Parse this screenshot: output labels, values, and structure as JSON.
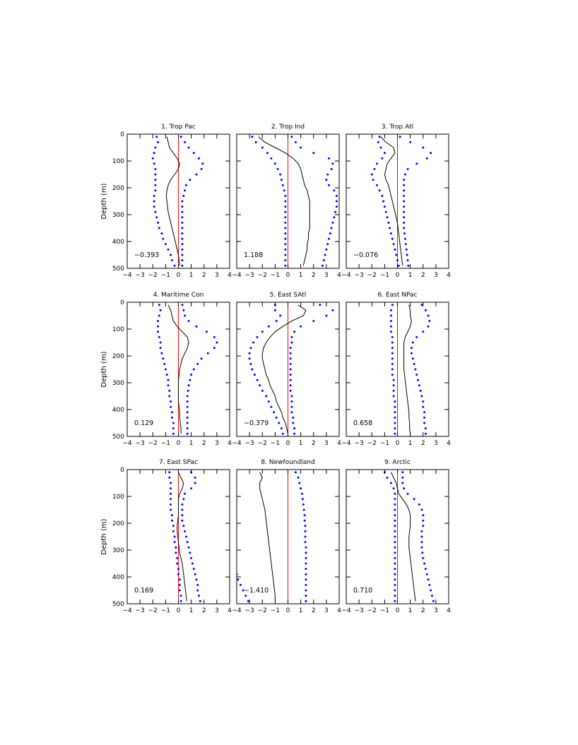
{
  "figure": {
    "ylabel": "Depth (m)"
  },
  "chart_data": {
    "type": "line",
    "shared": {
      "xlim": [
        -4,
        4
      ],
      "ylim": [
        500,
        0
      ],
      "xticks": [
        "−4",
        "−3",
        "−2",
        "−1",
        "0",
        "1",
        "2",
        "3",
        "4"
      ],
      "yticks": [
        "0",
        "100",
        "200",
        "300",
        "400",
        "500"
      ],
      "reference_line_x": 0,
      "colors": {
        "mean": "#000000",
        "bounds": "#0000ff",
        "zero_line": "#ff0000"
      }
    },
    "panels": [
      {
        "title": "1. Trop Pac",
        "value_label": "−0.393",
        "depths": [
          10,
          30,
          50,
          70,
          90,
          110,
          130,
          150,
          170,
          190,
          210,
          230,
          250,
          270,
          290,
          310,
          330,
          350,
          370,
          390,
          410,
          430,
          450,
          470,
          490
        ],
        "mean": [
          -0.9,
          -0.8,
          -0.7,
          -0.4,
          -0.1,
          0.1,
          0.0,
          -0.3,
          -0.6,
          -0.8,
          -0.9,
          -0.95,
          -0.9,
          -0.85,
          -0.8,
          -0.7,
          -0.6,
          -0.5,
          -0.4,
          -0.3,
          -0.2,
          -0.1,
          0.0,
          0.05,
          0.1
        ],
        "lower": [
          -1.7,
          -1.6,
          -1.8,
          -1.9,
          -2.0,
          -1.9,
          -1.8,
          -1.8,
          -1.8,
          -1.8,
          -1.8,
          -1.9,
          -1.9,
          -1.9,
          -1.8,
          -1.7,
          -1.6,
          -1.5,
          -1.3,
          -1.2,
          -1.0,
          -0.8,
          -0.6,
          -0.5,
          -0.3
        ],
        "upper": [
          0.2,
          0.5,
          0.8,
          1.2,
          1.6,
          1.9,
          1.8,
          1.4,
          0.9,
          0.6,
          0.5,
          0.4,
          0.3,
          0.3,
          0.3,
          0.3,
          0.3,
          0.3,
          0.3,
          0.3,
          0.3,
          0.3,
          0.3,
          0.3,
          0.3
        ]
      },
      {
        "title": "2. Trop Ind",
        "value_label": "1.188",
        "depths": [
          10,
          30,
          50,
          70,
          90,
          110,
          130,
          150,
          170,
          190,
          210,
          230,
          250,
          270,
          290,
          310,
          330,
          350,
          370,
          390,
          410,
          430,
          450,
          470,
          490
        ],
        "mean": [
          -2.3,
          -1.8,
          -1.0,
          -0.2,
          0.4,
          0.8,
          1.0,
          1.1,
          1.2,
          1.3,
          1.5,
          1.6,
          1.7,
          1.7,
          1.7,
          1.7,
          1.7,
          1.7,
          1.6,
          1.6,
          1.5,
          1.5,
          1.4,
          1.3,
          1.2
        ],
        "lower": [
          -2.8,
          -2.5,
          -2.0,
          -1.6,
          -1.3,
          -1.0,
          -0.8,
          -0.6,
          -0.5,
          -0.4,
          -0.3,
          -0.2,
          -0.2,
          -0.2,
          -0.2,
          -0.2,
          -0.2,
          -0.2,
          -0.2,
          -0.2,
          -0.2,
          -0.2,
          -0.2,
          -0.2,
          -0.2
        ],
        "upper": [
          0.3,
          0.6,
          1.0,
          2.0,
          3.2,
          3.5,
          3.4,
          3.1,
          3.0,
          3.2,
          3.6,
          3.8,
          3.8,
          3.8,
          3.7,
          3.6,
          3.5,
          3.4,
          3.3,
          3.2,
          3.1,
          3.0,
          2.9,
          2.8,
          2.7
        ]
      },
      {
        "title": "3. Trop Atl",
        "value_label": "−0.076",
        "depths": [
          10,
          30,
          50,
          70,
          90,
          110,
          130,
          150,
          170,
          190,
          210,
          230,
          250,
          270,
          290,
          310,
          330,
          350,
          370,
          390,
          410,
          430,
          450,
          470,
          490
        ],
        "mean": [
          -1.3,
          -0.9,
          -0.3,
          -0.2,
          -0.5,
          -0.8,
          -0.9,
          -1.0,
          -0.9,
          -0.7,
          -0.6,
          -0.5,
          -0.4,
          -0.3,
          -0.2,
          -0.1,
          0.0,
          0.05,
          0.1,
          0.15,
          0.2,
          0.25,
          0.3,
          0.35,
          0.4
        ],
        "lower": [
          -1.4,
          -1.5,
          -1.3,
          -1.0,
          -1.2,
          -1.6,
          -1.8,
          -2.0,
          -1.9,
          -1.6,
          -1.4,
          -1.2,
          -1.1,
          -1.0,
          -0.9,
          -0.8,
          -0.7,
          -0.6,
          -0.5,
          -0.4,
          -0.3,
          -0.2,
          -0.1,
          0.0,
          0.1
        ],
        "upper": [
          0.2,
          1.0,
          2.0,
          2.6,
          2.3,
          1.5,
          0.8,
          0.6,
          0.5,
          0.5,
          0.5,
          0.5,
          0.5,
          0.5,
          0.5,
          0.5,
          0.5,
          0.5,
          0.55,
          0.6,
          0.65,
          0.7,
          0.75,
          0.8,
          0.85
        ]
      },
      {
        "title": "4. Maritime Con",
        "value_label": "0.129",
        "depths": [
          10,
          30,
          50,
          70,
          90,
          110,
          130,
          150,
          170,
          190,
          210,
          230,
          250,
          270,
          290,
          310,
          330,
          350,
          370,
          390,
          410,
          430,
          450,
          470,
          490
        ],
        "mean": [
          -0.8,
          -0.6,
          -0.5,
          -0.4,
          -0.1,
          0.3,
          0.7,
          0.8,
          0.7,
          0.5,
          0.3,
          0.2,
          0.1,
          0.05,
          0.0,
          0.0,
          0.0,
          0.0,
          0.0,
          0.05,
          0.1,
          0.1,
          0.15,
          0.2,
          0.2
        ],
        "lower": [
          -1.5,
          -1.4,
          -1.5,
          -1.6,
          -1.6,
          -1.6,
          -1.5,
          -1.4,
          -1.4,
          -1.3,
          -1.2,
          -1.1,
          -1.0,
          -0.9,
          -0.8,
          -0.8,
          -0.7,
          -0.7,
          -0.6,
          -0.6,
          -0.5,
          -0.5,
          -0.4,
          -0.4,
          -0.4
        ],
        "upper": [
          0.3,
          0.4,
          0.5,
          0.8,
          1.4,
          2.2,
          2.8,
          3.0,
          2.8,
          2.3,
          1.8,
          1.5,
          1.2,
          1.0,
          0.9,
          0.8,
          0.75,
          0.7,
          0.7,
          0.7,
          0.7,
          0.7,
          0.7,
          0.7,
          0.7
        ]
      },
      {
        "title": "5. East SAtl",
        "value_label": "−0.379",
        "depths": [
          10,
          30,
          50,
          70,
          90,
          110,
          130,
          150,
          170,
          190,
          210,
          230,
          250,
          270,
          290,
          310,
          330,
          350,
          370,
          390,
          410,
          430,
          450,
          470,
          490
        ],
        "mean": [
          0.8,
          1.4,
          1.2,
          0.3,
          -0.4,
          -1.0,
          -1.4,
          -1.7,
          -1.9,
          -2.0,
          -2.0,
          -1.9,
          -1.8,
          -1.7,
          -1.5,
          -1.4,
          -1.2,
          -1.0,
          -0.9,
          -0.7,
          -0.5,
          -0.4,
          -0.2,
          -0.1,
          0.0
        ],
        "lower": [
          -1.0,
          -1.0,
          -0.6,
          -0.9,
          -1.5,
          -2.0,
          -2.4,
          -2.7,
          -2.9,
          -3.0,
          -3.0,
          -2.9,
          -2.8,
          -2.6,
          -2.4,
          -2.2,
          -2.0,
          -1.7,
          -1.5,
          -1.3,
          -1.1,
          -0.9,
          -0.7,
          -0.5,
          -0.4
        ],
        "upper": [
          2.5,
          3.5,
          3.0,
          2.0,
          1.0,
          0.5,
          0.3,
          0.3,
          0.2,
          0.2,
          0.2,
          0.2,
          0.2,
          0.2,
          0.2,
          0.2,
          0.2,
          0.3,
          0.3,
          0.3,
          0.3,
          0.4,
          0.4,
          0.5,
          0.5
        ]
      },
      {
        "title": "6. East NPac",
        "value_label": "0.658",
        "depths": [
          10,
          30,
          50,
          70,
          90,
          110,
          130,
          150,
          170,
          190,
          210,
          230,
          250,
          270,
          290,
          310,
          330,
          350,
          370,
          390,
          410,
          430,
          450,
          470,
          490
        ],
        "mean": [
          0.9,
          1.0,
          1.0,
          1.1,
          1.0,
          0.8,
          0.6,
          0.5,
          0.5,
          0.5,
          0.5,
          0.5,
          0.5,
          0.55,
          0.6,
          0.65,
          0.7,
          0.75,
          0.8,
          0.85,
          0.9,
          0.9,
          0.95,
          0.95,
          1.0
        ],
        "lower": [
          -0.4,
          -0.5,
          -0.5,
          -0.5,
          -0.5,
          -0.5,
          -0.4,
          -0.4,
          -0.4,
          -0.4,
          -0.4,
          -0.4,
          -0.4,
          -0.4,
          -0.3,
          -0.3,
          -0.3,
          -0.3,
          -0.2,
          -0.2,
          -0.2,
          -0.2,
          -0.2,
          -0.2,
          -0.2
        ],
        "upper": [
          1.9,
          2.2,
          2.4,
          2.5,
          2.4,
          2.0,
          1.5,
          1.2,
          1.1,
          1.1,
          1.2,
          1.3,
          1.4,
          1.5,
          1.6,
          1.7,
          1.8,
          1.9,
          2.0,
          2.0,
          2.1,
          2.1,
          2.1,
          2.2,
          2.2
        ]
      },
      {
        "title": "7. East SPac",
        "value_label": "0.169",
        "depths": [
          10,
          30,
          50,
          70,
          90,
          110,
          130,
          150,
          170,
          190,
          210,
          230,
          250,
          270,
          290,
          310,
          330,
          350,
          370,
          390,
          410,
          430,
          450,
          470,
          490
        ],
        "mean": [
          0.0,
          0.2,
          0.4,
          0.3,
          0.1,
          0.0,
          0.0,
          0.0,
          0.0,
          -0.05,
          -0.1,
          -0.1,
          -0.05,
          0.0,
          0.05,
          0.1,
          0.2,
          0.3,
          0.35,
          0.4,
          0.45,
          0.5,
          0.55,
          0.6,
          0.65
        ],
        "lower": [
          -0.7,
          -0.7,
          -0.6,
          -0.6,
          -0.6,
          -0.6,
          -0.6,
          -0.6,
          -0.5,
          -0.5,
          -0.4,
          -0.4,
          -0.3,
          -0.3,
          -0.2,
          -0.2,
          -0.1,
          -0.1,
          0.0,
          0.0,
          0.1,
          0.1,
          0.1,
          0.2,
          0.2
        ],
        "upper": [
          1.0,
          1.3,
          1.3,
          1.0,
          0.5,
          0.4,
          0.3,
          0.3,
          0.3,
          0.3,
          0.4,
          0.5,
          0.6,
          0.7,
          0.8,
          0.9,
          1.0,
          1.1,
          1.2,
          1.3,
          1.4,
          1.5,
          1.5,
          1.6,
          1.7
        ]
      },
      {
        "title": "8. Newfoundland",
        "value_label": "−1.410",
        "depths": [
          10,
          30,
          50,
          70,
          90,
          110,
          130,
          150,
          170,
          190,
          210,
          230,
          250,
          270,
          290,
          310,
          330,
          350,
          370,
          390,
          410,
          430,
          450,
          470,
          490
        ],
        "mean": [
          -2.2,
          -2.0,
          -2.2,
          -2.2,
          -2.1,
          -2.0,
          -1.9,
          -1.8,
          -1.75,
          -1.7,
          -1.65,
          -1.6,
          -1.55,
          -1.5,
          -1.45,
          -1.4,
          -1.35,
          -1.3,
          -1.25,
          -1.2,
          -1.15,
          -1.1,
          -1.05,
          -1.0,
          -1.0
        ],
        "lower": [
          -4.2,
          -4.2,
          -4.2,
          -4.2,
          -4.2,
          -4.2,
          -4.2,
          -4.2,
          -4.2,
          -4.2,
          -4.2,
          -4.2,
          -4.2,
          -4.2,
          -4.2,
          -4.2,
          -4.2,
          -4.2,
          -4.1,
          -4.0,
          -3.9,
          -3.7,
          -3.5,
          -3.3,
          -3.1
        ],
        "upper": [
          0.6,
          0.8,
          0.9,
          1.0,
          1.1,
          1.15,
          1.2,
          1.25,
          1.3,
          1.3,
          1.35,
          1.35,
          1.35,
          1.35,
          1.4,
          1.4,
          1.4,
          1.4,
          1.4,
          1.4,
          1.4,
          1.4,
          1.4,
          1.4,
          1.4
        ]
      },
      {
        "title": "9. Arctic",
        "value_label": "0.710",
        "depths": [
          10,
          30,
          50,
          70,
          90,
          110,
          130,
          150,
          170,
          190,
          210,
          230,
          250,
          270,
          290,
          310,
          330,
          350,
          370,
          390,
          410,
          430,
          450,
          470,
          490
        ],
        "mean": [
          -0.5,
          -0.3,
          -0.1,
          0.0,
          0.1,
          0.4,
          0.7,
          0.9,
          1.0,
          1.0,
          1.0,
          0.95,
          0.9,
          0.9,
          0.9,
          0.95,
          1.0,
          1.05,
          1.1,
          1.15,
          1.2,
          1.25,
          1.3,
          1.35,
          1.4
        ],
        "lower": [
          -1.0,
          -0.8,
          -0.5,
          -0.3,
          -0.2,
          -0.2,
          -0.2,
          -0.2,
          -0.2,
          -0.2,
          -0.2,
          -0.2,
          -0.2,
          -0.2,
          -0.2,
          -0.2,
          -0.2,
          -0.2,
          -0.2,
          -0.2,
          -0.2,
          -0.2,
          -0.2,
          -0.2,
          -0.2
        ],
        "upper": [
          0.4,
          0.4,
          0.4,
          0.5,
          0.8,
          1.3,
          1.7,
          1.9,
          2.0,
          2.0,
          2.0,
          1.9,
          1.9,
          1.9,
          1.9,
          1.95,
          2.0,
          2.1,
          2.2,
          2.3,
          2.4,
          2.5,
          2.6,
          2.7,
          2.8
        ]
      }
    ]
  }
}
